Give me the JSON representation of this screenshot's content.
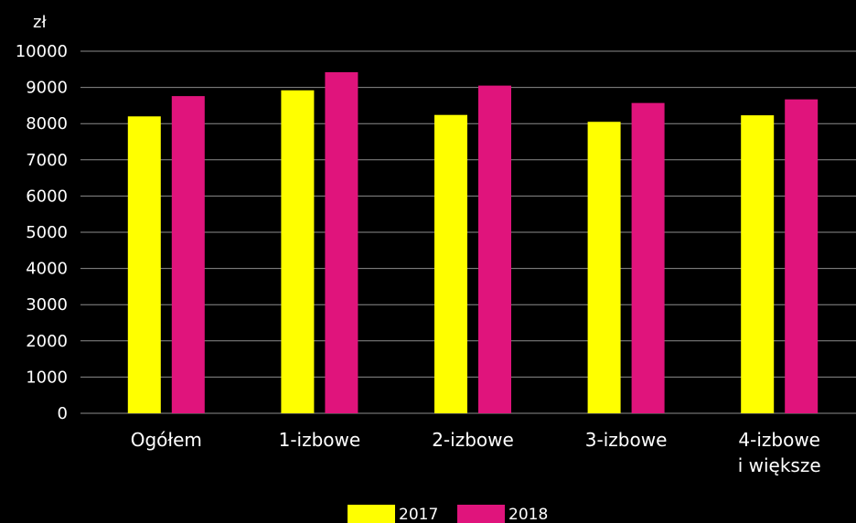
{
  "chart_data": {
    "type": "bar",
    "unit_label": "zł",
    "categories": [
      [
        "Ogółem"
      ],
      [
        "1-izbowe"
      ],
      [
        "2-izbowe"
      ],
      [
        "3-izbowe"
      ],
      [
        "4-izbowe",
        "i większe"
      ]
    ],
    "series": [
      {
        "name": "2017",
        "color": "#ffff00",
        "values": [
          8200,
          8920,
          8240,
          8050,
          8230
        ]
      },
      {
        "name": "2018",
        "color": "#e0147c",
        "values": [
          8760,
          9420,
          9050,
          8570,
          8670
        ]
      }
    ],
    "ylim": [
      0,
      10000
    ],
    "yticks": [
      0,
      1000,
      2000,
      3000,
      4000,
      5000,
      6000,
      7000,
      8000,
      9000,
      10000
    ],
    "grid": true,
    "legend_position": "bottom-center"
  }
}
